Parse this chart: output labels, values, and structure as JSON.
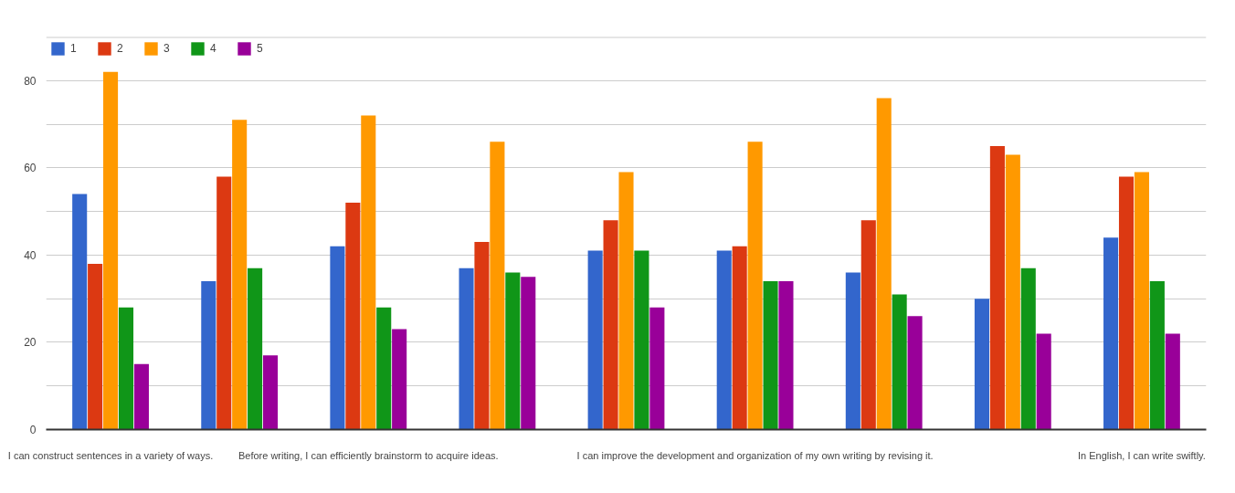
{
  "chart_data": {
    "type": "bar",
    "categories": [
      "I can construct sentences in a variety of ways.",
      null,
      "Before writing, I can efficiently brainstorm to acquire ideas.",
      null,
      null,
      "I can improve the development and organization of my own writing by revising it.",
      null,
      null,
      "In English, I can write swiftly."
    ],
    "series": [
      {
        "name": "1",
        "color": "#3366cc",
        "values": [
          54,
          34,
          42,
          37,
          41,
          41,
          36,
          30,
          44
        ]
      },
      {
        "name": "2",
        "color": "#dc3912",
        "values": [
          38,
          58,
          52,
          43,
          48,
          42,
          48,
          65,
          58
        ]
      },
      {
        "name": "3",
        "color": "#ff9900",
        "values": [
          82,
          71,
          72,
          66,
          59,
          66,
          76,
          63,
          59
        ]
      },
      {
        "name": "4",
        "color": "#109618",
        "values": [
          28,
          37,
          28,
          36,
          41,
          34,
          31,
          37,
          34
        ]
      },
      {
        "name": "5",
        "color": "#990099",
        "values": [
          15,
          17,
          23,
          35,
          28,
          34,
          26,
          22,
          22
        ]
      }
    ],
    "ylim": [
      0,
      90
    ],
    "yticks": [
      0,
      {
        "value": 10,
        "label": null
      },
      20,
      {
        "value": 30,
        "label": null
      },
      40,
      {
        "value": 50,
        "label": null
      },
      60,
      {
        "value": 70,
        "label": null
      },
      80,
      {
        "value": 90,
        "label": null
      }
    ],
    "grid": "y",
    "legend": "top left"
  }
}
